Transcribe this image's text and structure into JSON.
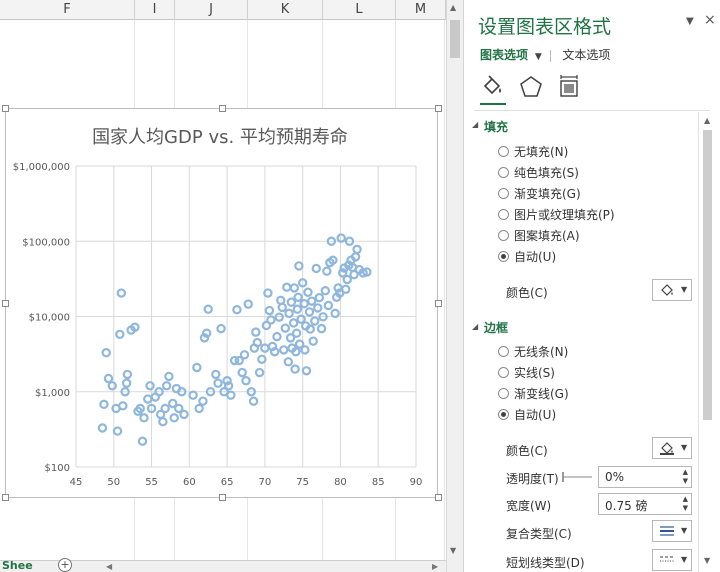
{
  "columns": [
    "F",
    "I",
    "J",
    "K",
    "L",
    "M"
  ],
  "sheet": {
    "tab_label": "Shee",
    "add_sheet": "+"
  },
  "chart_data": {
    "type": "scatter",
    "title": "国家人均GDP vs. 平均预期寿命",
    "xlabel": "",
    "ylabel": "",
    "x_ticks": [
      "45",
      "50",
      "55",
      "60",
      "65",
      "70",
      "75",
      "80",
      "85",
      "90"
    ],
    "y_ticks": [
      "$100",
      "$1,000",
      "$10,000",
      "$100,000",
      "$1,000,000"
    ],
    "xlim": [
      45,
      90
    ],
    "ylim": [
      100,
      1000000
    ],
    "y_scale": "log",
    "grid": true,
    "legend": "none",
    "marker_color": "#8fb6dc",
    "points": [
      [
        48.5,
        330
      ],
      [
        48.7,
        680
      ],
      [
        49,
        3300
      ],
      [
        49.3,
        1500
      ],
      [
        49.8,
        1200
      ],
      [
        50.3,
        600
      ],
      [
        50.5,
        300
      ],
      [
        50.8,
        5800
      ],
      [
        51,
        20500
      ],
      [
        51.2,
        650
      ],
      [
        51.5,
        1000
      ],
      [
        51.7,
        1300
      ],
      [
        51.8,
        1700
      ],
      [
        52.3,
        6600
      ],
      [
        52.8,
        7200
      ],
      [
        53.2,
        550
      ],
      [
        53.5,
        600
      ],
      [
        53.8,
        220
      ],
      [
        54,
        450
      ],
      [
        54.5,
        800
      ],
      [
        54.8,
        1200
      ],
      [
        55,
        600
      ],
      [
        55.5,
        850
      ],
      [
        56,
        1000
      ],
      [
        56.2,
        500
      ],
      [
        56.5,
        400
      ],
      [
        56.8,
        600
      ],
      [
        57,
        1200
      ],
      [
        57.3,
        1600
      ],
      [
        57.8,
        700
      ],
      [
        58,
        450
      ],
      [
        58.3,
        1100
      ],
      [
        58.6,
        600
      ],
      [
        59,
        1000
      ],
      [
        59.3,
        500
      ],
      [
        60.5,
        900
      ],
      [
        61,
        2100
      ],
      [
        61.3,
        600
      ],
      [
        61.8,
        750
      ],
      [
        62,
        5200
      ],
      [
        62.3,
        6000
      ],
      [
        62.5,
        12500
      ],
      [
        62.8,
        1000
      ],
      [
        63.5,
        1700
      ],
      [
        63.8,
        1300
      ],
      [
        64.2,
        6900
      ],
      [
        64.6,
        1000
      ],
      [
        65,
        1400
      ],
      [
        65.2,
        1200
      ],
      [
        65.5,
        900
      ],
      [
        66,
        2600
      ],
      [
        66.3,
        12300
      ],
      [
        66.6,
        2600
      ],
      [
        67,
        1800
      ],
      [
        67.3,
        3100
      ],
      [
        67.5,
        1400
      ],
      [
        67.8,
        14600
      ],
      [
        68.2,
        1000
      ],
      [
        68.5,
        750
      ],
      [
        68.6,
        3800
      ],
      [
        68.8,
        6200
      ],
      [
        69,
        4500
      ],
      [
        69.3,
        1800
      ],
      [
        69.6,
        2700
      ],
      [
        70,
        3800
      ],
      [
        70.2,
        7600
      ],
      [
        70.4,
        20500
      ],
      [
        70.6,
        12000
      ],
      [
        70.8,
        9000
      ],
      [
        71,
        4000
      ],
      [
        71.3,
        3400
      ],
      [
        71.6,
        5400
      ],
      [
        71.9,
        9800
      ],
      [
        72.1,
        16400
      ],
      [
        72.3,
        13200
      ],
      [
        72.5,
        3600
      ],
      [
        72.7,
        7000
      ],
      [
        72.9,
        24500
      ],
      [
        73.1,
        2500
      ],
      [
        73.2,
        11000
      ],
      [
        73.4,
        5200
      ],
      [
        73.5,
        15500
      ],
      [
        73.6,
        3800
      ],
      [
        73.8,
        8200
      ],
      [
        73.9,
        24000
      ],
      [
        74,
        2000
      ],
      [
        74.1,
        3400
      ],
      [
        74.2,
        6000
      ],
      [
        74.3,
        12500
      ],
      [
        74.4,
        18000
      ],
      [
        74.5,
        47000
      ],
      [
        74.6,
        4300
      ],
      [
        74.8,
        9200
      ],
      [
        75,
        28000
      ],
      [
        75.2,
        14800
      ],
      [
        75.3,
        3600
      ],
      [
        75.4,
        7500
      ],
      [
        75.5,
        1900
      ],
      [
        75.7,
        21000
      ],
      [
        75.9,
        11500
      ],
      [
        76,
        6800
      ],
      [
        76.2,
        16000
      ],
      [
        76.4,
        4700
      ],
      [
        76.6,
        8700
      ],
      [
        76.8,
        43500
      ],
      [
        77,
        13000
      ],
      [
        77.2,
        17800
      ],
      [
        77.5,
        6900
      ],
      [
        77.7,
        9900
      ],
      [
        78,
        22000
      ],
      [
        78.2,
        40000
      ],
      [
        78.4,
        14000
      ],
      [
        78.6,
        52000
      ],
      [
        78.8,
        100000
      ],
      [
        79,
        56000
      ],
      [
        79.3,
        11000
      ],
      [
        79.5,
        18000
      ],
      [
        79.7,
        24000
      ],
      [
        79.9,
        20500
      ],
      [
        80.1,
        110000
      ],
      [
        80.3,
        38000
      ],
      [
        80.5,
        44000
      ],
      [
        80.7,
        23000
      ],
      [
        80.9,
        31000
      ],
      [
        81.1,
        48000
      ],
      [
        81.2,
        100000
      ],
      [
        81.4,
        56000
      ],
      [
        81.6,
        45000
      ],
      [
        81.8,
        36000
      ],
      [
        82,
        62000
      ],
      [
        82.2,
        78000
      ],
      [
        82.5,
        42000
      ],
      [
        83,
        38000
      ],
      [
        83.5,
        39000
      ]
    ]
  },
  "pane": {
    "title": "设置图表区格式",
    "controls": "▼",
    "close": "×",
    "tab_chart_options": "图表选项",
    "tab_chart_options_arrow": "▼",
    "tab_text_options": "文本选项",
    "fill": {
      "header": "填充",
      "options": [
        "无填充(N)",
        "纯色填充(S)",
        "渐变填充(G)",
        "图片或纹理填充(P)",
        "图案填充(A)",
        "自动(U)"
      ],
      "selected_index": 5,
      "color_label": "颜色(C)"
    },
    "border": {
      "header": "边框",
      "options": [
        "无线条(N)",
        "实线(S)",
        "渐变线(G)",
        "自动(U)"
      ],
      "selected_index": 3,
      "color_label": "颜色(C)",
      "transparency_label": "透明度(T)",
      "transparency_value": "0%",
      "width_label": "宽度(W)",
      "width_value": "0.75 磅",
      "compound_label": "复合类型(C)",
      "dash_label": "短划线类型(D)"
    }
  }
}
